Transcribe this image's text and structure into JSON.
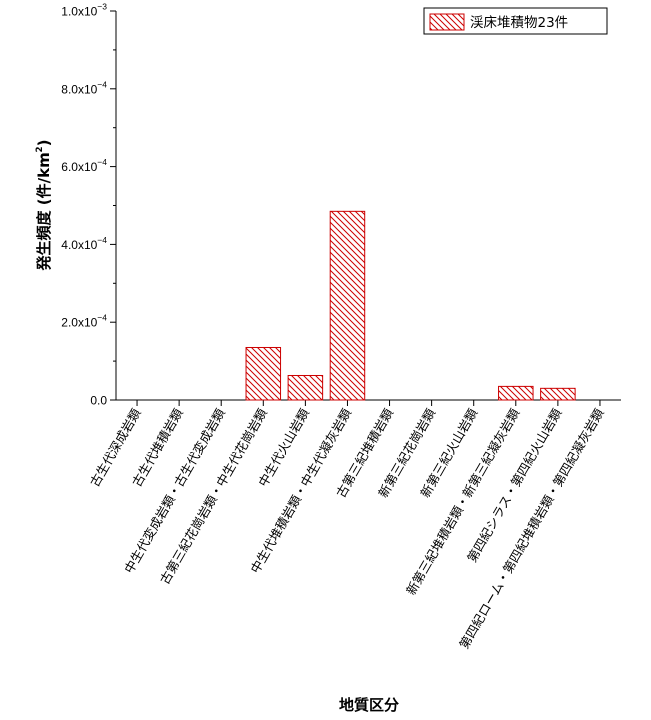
{
  "chart_data": {
    "type": "bar",
    "ylabel": "発生頻度 (件/km²)",
    "ylabel_main": "発生頻度 (件/km",
    "ylabel_sup": "2",
    "ylabel_close": ")",
    "xlabel": "地質区分",
    "ylim": [
      0,
      0.001
    ],
    "yticks": [
      {
        "value": 0,
        "mantissa": "0.0",
        "exp": ""
      },
      {
        "value": 0.0002,
        "mantissa": "2.0x10",
        "exp": "−4"
      },
      {
        "value": 0.0004,
        "mantissa": "4.0x10",
        "exp": "−4"
      },
      {
        "value": 0.0006,
        "mantissa": "6.0x10",
        "exp": "−4"
      },
      {
        "value": 0.0008,
        "mantissa": "8.0x10",
        "exp": "−4"
      },
      {
        "value": 0.001,
        "mantissa": "1.0x10",
        "exp": "−3"
      }
    ],
    "categories": [
      "古生代深成岩類",
      "古生代堆積岩類",
      "中生代変成岩類・古生代変成岩類",
      "古第三紀花崗岩類・中生代花崗岩類",
      "中生代火山岩類",
      "中生代堆積岩類・中生代凝灰岩類",
      "古第三紀堆積岩類",
      "新第三紀花崗岩類",
      "新第三紀火山岩類",
      "新第三紀堆積岩類・新第三紀凝灰岩類",
      "第四紀シラス・第四紀火山岩類",
      "第四紀ローム・第四紀堆積岩類・第四紀凝灰岩類"
    ],
    "series": [
      {
        "name": "渓床堆積物23件",
        "color": "#cc0000",
        "values": [
          0,
          0,
          0,
          0.000135,
          6.3e-05,
          0.000485,
          0,
          0,
          0,
          3.5e-05,
          3e-05,
          0
        ]
      }
    ],
    "grid": false,
    "legend_position": "top-right"
  }
}
